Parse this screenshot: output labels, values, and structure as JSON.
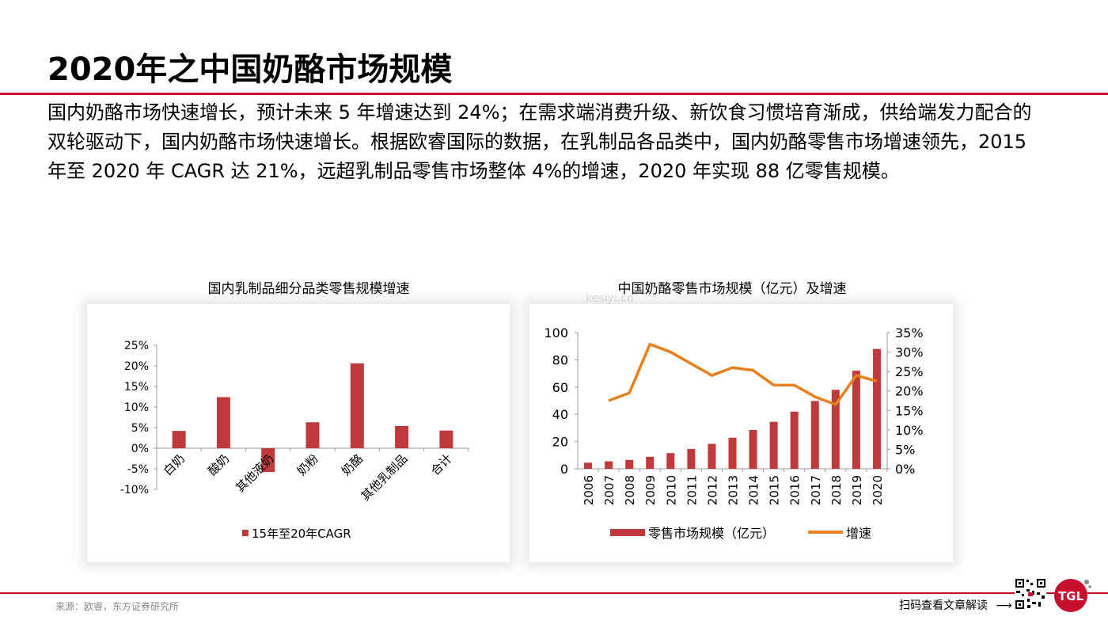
{
  "page": {
    "title": "2020年之中国奶酪市场规模",
    "intro": "国内奶酪市场快速增长，预计未来 5 年增速达到 24%；在需求端消费升级、新饮食习惯培育渐成，供给端发力配合的双轮驱动下，国内奶酪市场快速增长。根据欧睿国际的数据，在乳制品各品类中，国内奶酪零售市场增速领先，2015 年至 2020 年 CAGR 达 21%，远超乳制品零售市场整体 4%的增速，2020 年实现 88 亿零售规模。",
    "source": "来源：欧睿，东方证券研究所",
    "scan_text": "扫码查看文章解读",
    "arrow": "⟶",
    "logo_text": "TGL",
    "watermark": "kesiyi.cn"
  },
  "colors": {
    "accent_red": "#c8102e",
    "bar_red": "#c0393b",
    "line_orange": "#e8801e"
  },
  "chart_data": [
    {
      "type": "bar",
      "title": "国内乳制品细分品类零售规模增速",
      "categories": [
        "白奶",
        "酸奶",
        "其他液奶",
        "奶粉",
        "奶酪",
        "其他乳制品",
        "合计"
      ],
      "series": [
        {
          "name": "15年至20年CAGR",
          "values": [
            4.2,
            12.4,
            -5.8,
            6.3,
            20.6,
            5.4,
            4.3
          ]
        }
      ],
      "yticks": [
        "25%",
        "20%",
        "15%",
        "10%",
        "5%",
        "0%",
        "-5%",
        "-10%"
      ],
      "ylim": [
        -10,
        25
      ],
      "unit": "%",
      "legend": "bottom"
    },
    {
      "type": "bar+line",
      "title": "中国奶酪零售市场规模（亿元）及增速",
      "categories": [
        "2006",
        "2007",
        "2008",
        "2009",
        "2010",
        "2011",
        "2012",
        "2013",
        "2014",
        "2015",
        "2016",
        "2017",
        "2018",
        "2019",
        "2020"
      ],
      "series": [
        {
          "name": "零售市场规模（亿元）",
          "type": "bar",
          "axis": "left",
          "values": [
            4.5,
            5.5,
            6.5,
            8.8,
            11.5,
            14.5,
            18.3,
            22.8,
            28.5,
            34.5,
            42.0,
            49.8,
            58.0,
            72.0,
            88.0
          ]
        },
        {
          "name": "增速",
          "type": "line",
          "axis": "right",
          "values": [
            null,
            17.5,
            19.5,
            32.0,
            30.0,
            27.0,
            24.0,
            26.0,
            25.3,
            21.5,
            21.5,
            18.5,
            16.5,
            24.0,
            22.5
          ]
        }
      ],
      "yticks_left": [
        "100",
        "80",
        "60",
        "40",
        "20",
        "0"
      ],
      "yticks_right": [
        "35%",
        "30%",
        "25%",
        "20%",
        "15%",
        "10%",
        "5%",
        "0%"
      ],
      "ylim_left": [
        0,
        100
      ],
      "ylim_right": [
        0,
        35
      ],
      "legend": "bottom"
    }
  ]
}
